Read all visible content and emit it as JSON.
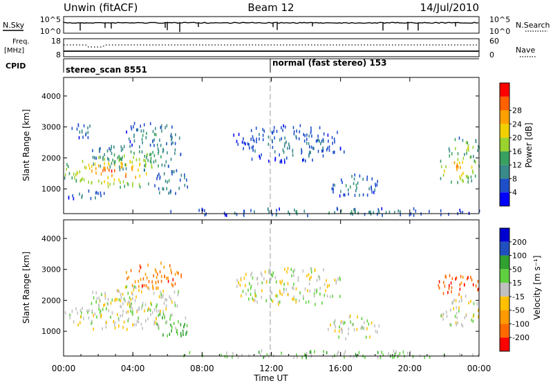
{
  "header": {
    "title": "Unwin (fitACF)",
    "beam": "Beam 12",
    "date": "14/Jul/2010"
  },
  "nsky_panel": {
    "left_label": "N.Sky",
    "left_ticks": [
      "10^5",
      "10^0"
    ],
    "right_label": "N.Search",
    "right_ticks": [
      "10^5",
      "10^0"
    ]
  },
  "freq_panel": {
    "left_label_1": "Freq.",
    "left_label_2": "[MHz]",
    "left_ticks": [
      "18",
      "8"
    ],
    "right_label": "Nave",
    "right_ticks": [
      "60",
      "0"
    ]
  },
  "cpid_panel": {
    "label": "CPID",
    "segments": [
      {
        "label": "stereo_scan 8551",
        "start_hour": 0
      },
      {
        "label": "normal (fast stereo) 153",
        "start_hour": 12
      }
    ]
  },
  "colors": {
    "power": [
      "#0000ff",
      "#1f4fc8",
      "#3a8a8a",
      "#3aa060",
      "#9ad22e",
      "#f0d000",
      "#ffa000",
      "#ff6000",
      "#ff0000"
    ],
    "velocity": [
      "#ff0000",
      "#ff6a00",
      "#ff9a00",
      "#ffc000",
      "#c0c0c0",
      "#60d040",
      "#30a030",
      "#2050c0",
      "#0000d0"
    ]
  },
  "chart_data": [
    {
      "type": "heatmap",
      "name": "power",
      "ylabel": "Slant Range [km]",
      "yticks": [
        "1000",
        "2000",
        "3000",
        "4000"
      ],
      "ylim": [
        200,
        4600
      ],
      "colorbar_label": "Power [dB]",
      "colorbar_ticks": [
        "4",
        "8",
        "12",
        "16",
        "20",
        "24",
        "28"
      ],
      "colorbar_range": [
        0,
        30
      ],
      "regions": [
        {
          "t0": 0,
          "t1": 5.8,
          "r0": 1100,
          "r1": 2100,
          "v": 22
        },
        {
          "t0": 1.5,
          "t1": 6.8,
          "r0": 1650,
          "r1": 2500,
          "v": 12
        },
        {
          "t0": 3.5,
          "t1": 6.8,
          "r0": 2400,
          "r1": 3200,
          "v": 9
        },
        {
          "t0": 0.4,
          "t1": 2,
          "r0": 2700,
          "r1": 3200,
          "v": 7
        },
        {
          "t0": 0.2,
          "t1": 2.5,
          "r0": 650,
          "r1": 1000,
          "v": 7
        },
        {
          "t0": 5.2,
          "t1": 7.2,
          "r0": 800,
          "r1": 1650,
          "v": 9
        },
        {
          "t0": 9.8,
          "t1": 16.2,
          "r0": 1900,
          "r1": 3100,
          "v": 7
        },
        {
          "t0": 15.2,
          "t1": 18.2,
          "r0": 800,
          "r1": 1550,
          "v": 9
        },
        {
          "t0": 21.6,
          "t1": 24,
          "r0": 1200,
          "r1": 2200,
          "v": 20
        },
        {
          "t0": 22.2,
          "t1": 24,
          "r0": 2100,
          "r1": 2700,
          "v": 15
        },
        {
          "t0": 6,
          "t1": 24,
          "r0": 180,
          "r1": 420,
          "v": 8
        }
      ]
    },
    {
      "type": "heatmap",
      "name": "velocity",
      "ylabel": "Slant Range [km]",
      "yticks": [
        "1000",
        "2000",
        "3000",
        "4000"
      ],
      "ylim": [
        200,
        4600
      ],
      "colorbar_label": "Velocity [m s⁻¹]",
      "colorbar_ticks": [
        "200",
        "100",
        "50",
        "15",
        "-15",
        "-50",
        "-100",
        "-200"
      ],
      "colorbar_range": [
        -250,
        250
      ],
      "regions": [
        {
          "t0": 0,
          "t1": 5.8,
          "r0": 1100,
          "r1": 2100,
          "v": 0
        },
        {
          "t0": 1.5,
          "t1": 6.8,
          "r0": 1650,
          "r1": 2500,
          "v": 0
        },
        {
          "t0": 3.5,
          "t1": 6.8,
          "r0": 2400,
          "r1": 3300,
          "v": -150
        },
        {
          "t0": 5.2,
          "t1": 7.2,
          "r0": 800,
          "r1": 1650,
          "v": 60
        },
        {
          "t0": 9.8,
          "t1": 16.2,
          "r0": 1900,
          "r1": 3100,
          "v": 0
        },
        {
          "t0": 15.2,
          "t1": 18.2,
          "r0": 800,
          "r1": 1550,
          "v": 0
        },
        {
          "t0": 21.6,
          "t1": 24,
          "r0": 1200,
          "r1": 2200,
          "v": 0
        },
        {
          "t0": 21.6,
          "t1": 24,
          "r0": 2200,
          "r1": 2900,
          "v": -180
        },
        {
          "t0": 6,
          "t1": 24,
          "r0": 180,
          "r1": 420,
          "v": 40
        }
      ]
    }
  ],
  "xaxis": {
    "label": "Time UT",
    "ticks": [
      "00:00",
      "04:00",
      "08:00",
      "12:00",
      "16:00",
      "20:00",
      "00:00"
    ],
    "range_hours": [
      0,
      24
    ]
  }
}
